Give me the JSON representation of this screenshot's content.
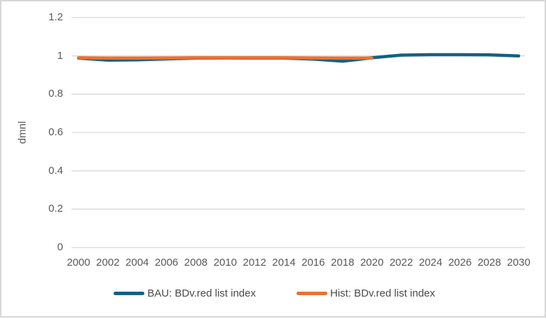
{
  "chart_data": {
    "type": "line",
    "title": "",
    "xlabel": "",
    "ylabel": "dmnl",
    "ylim": [
      0,
      1.2
    ],
    "yticks": [
      0,
      0.2,
      0.4,
      0.6,
      0.8,
      1,
      1.2
    ],
    "ytick_labels": [
      "0",
      "0.2",
      "0.4",
      "0.6",
      "0.8",
      "1",
      "1.2"
    ],
    "xlim": [
      2000,
      2030
    ],
    "xticks": [
      2000,
      2002,
      2004,
      2006,
      2008,
      2010,
      2012,
      2014,
      2016,
      2018,
      2020,
      2022,
      2024,
      2026,
      2028,
      2030
    ],
    "grid": true,
    "legend_position": "bottom",
    "colors": {
      "background": "#FFFFFF",
      "border": "#D7D7D7",
      "gridline": "#D9D9D9",
      "tick_text": "#595959",
      "legend_text": "#4A4A4A"
    },
    "series": [
      {
        "name": "BAU: BDv.red list index",
        "color": "#156082",
        "x": [
          2000,
          2002,
          2004,
          2006,
          2008,
          2010,
          2012,
          2014,
          2016,
          2018,
          2020,
          2022,
          2024,
          2026,
          2028,
          2030
        ],
        "values": [
          0.988,
          0.978,
          0.979,
          0.984,
          0.988,
          0.989,
          0.988,
          0.988,
          0.983,
          0.972,
          0.99,
          1.004,
          1.006,
          1.006,
          1.005,
          1.0
        ]
      },
      {
        "name": "Hist: BDv.red list index",
        "color": "#E97132",
        "x": [
          2000,
          2002,
          2004,
          2006,
          2008,
          2010,
          2012,
          2014,
          2016,
          2018,
          2020
        ],
        "values": [
          0.99,
          0.988,
          0.988,
          0.989,
          0.99,
          0.99,
          0.99,
          0.99,
          0.989,
          0.988,
          0.988
        ]
      }
    ]
  }
}
